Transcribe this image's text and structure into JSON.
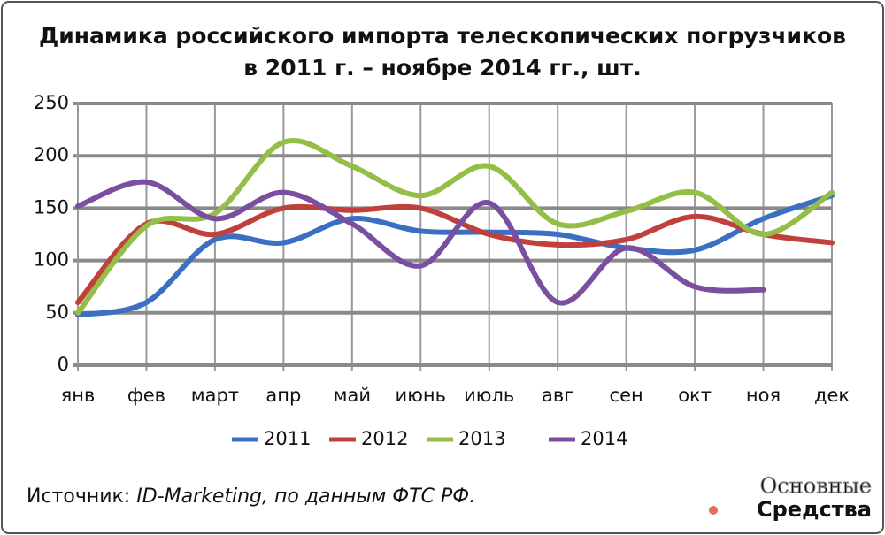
{
  "chart_data": {
    "type": "line",
    "title": [
      "Динамика российского импорта телескопических погрузчиков",
      "в 2011 г. – ноябре 2014 гг., шт."
    ],
    "categories": [
      "янв",
      "фев",
      "март",
      "апр",
      "май",
      "июнь",
      "июль",
      "авг",
      "сен",
      "окт",
      "ноя",
      "дек"
    ],
    "series": [
      {
        "name": "2011",
        "color": "#3b6fc1",
        "values": [
          48,
          60,
          120,
          117,
          140,
          128,
          127,
          125,
          112,
          110,
          140,
          162
        ]
      },
      {
        "name": "2012",
        "color": "#c0403b",
        "values": [
          60,
          135,
          125,
          150,
          148,
          150,
          125,
          115,
          120,
          142,
          125,
          117
        ]
      },
      {
        "name": "2013",
        "color": "#93bf48",
        "values": [
          50,
          133,
          145,
          213,
          190,
          162,
          190,
          135,
          147,
          165,
          125,
          165
        ]
      },
      {
        "name": "2014",
        "color": "#7b4fa0",
        "values": [
          152,
          175,
          140,
          165,
          135,
          95,
          155,
          60,
          112,
          75,
          72,
          null
        ]
      }
    ],
    "ylim": [
      0,
      250
    ],
    "yticks": [
      0,
      50,
      100,
      150,
      200,
      250
    ],
    "grid": true,
    "legend": "bottom",
    "source": {
      "label": "Источник:",
      "text": "ID-Marketing, по данным ФТС РФ."
    },
    "logo": [
      "Основные",
      "Средства"
    ]
  }
}
